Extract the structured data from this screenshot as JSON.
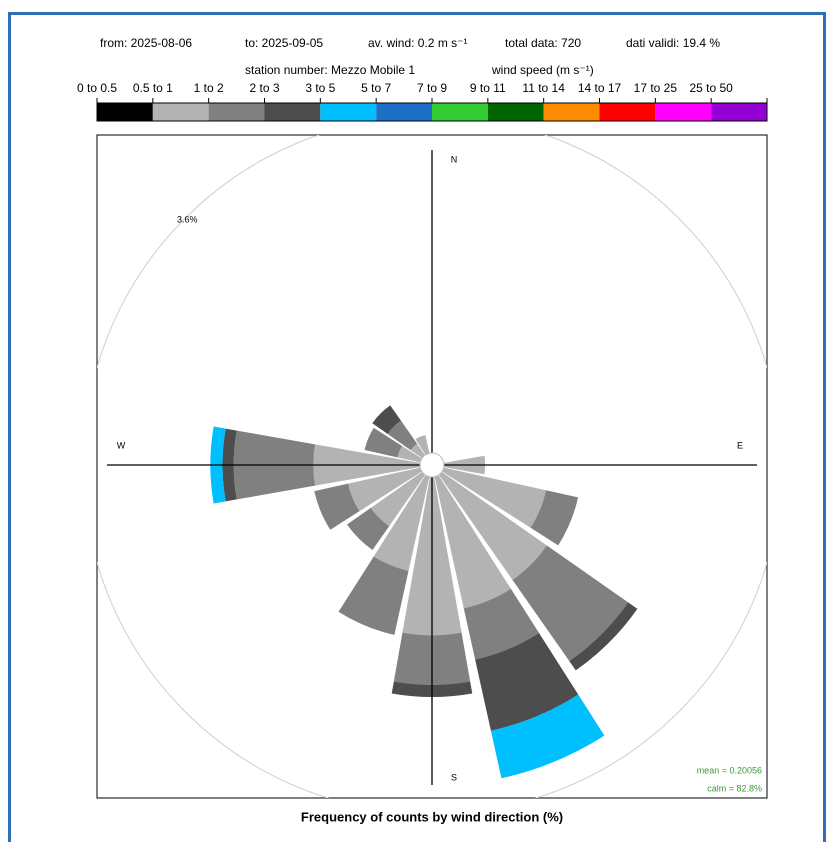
{
  "chart_data": {
    "type": "windrose",
    "header": [
      "from: 2025-08-06",
      "to: 2025-09-05",
      "av. wind:  0.2 m s⁻¹",
      "total data: 720",
      "dati validi: 19.4 %"
    ],
    "station": "station number:  Mezzo Mobile 1",
    "legend_title": "wind speed (m s⁻¹)",
    "footer": "Frequency of counts by wind direction (%)",
    "compass": [
      "N",
      "E",
      "S",
      "W"
    ],
    "annotations": [
      "mean = 0.20056",
      "calm = 82.8%"
    ],
    "directions": [
      0,
      22.5,
      45,
      67.5,
      90,
      112.5,
      135,
      157.5,
      180,
      202.5,
      225,
      247.5,
      270,
      292.5,
      315,
      337.5
    ],
    "rlim": [
      0,
      3.6
    ],
    "rticks": [
      {
        "value": 3.6,
        "label": "3.6%"
      }
    ],
    "series": [
      {
        "name": "0 to 0.5",
        "color": "#000000",
        "values": [
          0,
          0,
          0,
          0,
          0,
          0,
          0,
          0,
          0,
          0,
          0,
          0,
          0,
          0,
          0,
          0
        ]
      },
      {
        "name": "0.5 to 1",
        "color": "#b3b3b3",
        "values": [
          0,
          0,
          0,
          0,
          0.44,
          1.12,
          1.37,
          1.44,
          1.69,
          1.03,
          0.67,
          0.79,
          1.14,
          0.25,
          0.15,
          0.2
        ]
      },
      {
        "name": "1 to 2",
        "color": "#808080",
        "values": [
          0,
          0,
          0,
          0,
          0,
          0.35,
          1.06,
          0.56,
          0.53,
          0.7,
          0.31,
          0.37,
          0.85,
          0.36,
          0.3,
          0
        ]
      },
      {
        "name": "2 to 3",
        "color": "#4d4d4d",
        "values": [
          0,
          0,
          0,
          0,
          0,
          0,
          0.12,
          0.78,
          0.13,
          0,
          0,
          0,
          0.12,
          0,
          0.2,
          0
        ]
      },
      {
        "name": "3 to 5",
        "color": "#00bfff",
        "values": [
          0,
          0,
          0,
          0,
          0,
          0,
          0,
          0.52,
          0,
          0,
          0,
          0,
          0.13,
          0,
          0,
          0
        ]
      },
      {
        "name": "5 to 7",
        "color": "#1e6fc8",
        "values": [
          0,
          0,
          0,
          0,
          0,
          0,
          0,
          0,
          0,
          0,
          0,
          0,
          0,
          0,
          0,
          0
        ]
      },
      {
        "name": "7 to 9",
        "color": "#32cd32",
        "values": [
          0,
          0,
          0,
          0,
          0,
          0,
          0,
          0,
          0,
          0,
          0,
          0,
          0,
          0,
          0,
          0
        ]
      },
      {
        "name": "9 to 11",
        "color": "#006400",
        "values": [
          0,
          0,
          0,
          0,
          0,
          0,
          0,
          0,
          0,
          0,
          0,
          0,
          0,
          0,
          0,
          0
        ]
      },
      {
        "name": "11 to 14",
        "color": "#ff8c00",
        "values": [
          0,
          0,
          0,
          0,
          0,
          0,
          0,
          0,
          0,
          0,
          0,
          0,
          0,
          0,
          0,
          0
        ]
      },
      {
        "name": "14 to 17",
        "color": "#ff0000",
        "values": [
          0,
          0,
          0,
          0,
          0,
          0,
          0,
          0,
          0,
          0,
          0,
          0,
          0,
          0,
          0,
          0
        ]
      },
      {
        "name": "17 to 25",
        "color": "#ff00ff",
        "values": [
          0,
          0,
          0,
          0,
          0,
          0,
          0,
          0,
          0,
          0,
          0,
          0,
          0,
          0,
          0,
          0
        ]
      },
      {
        "name": "25 to 50",
        "color": "#9400d3",
        "values": [
          0,
          0,
          0,
          0,
          0,
          0,
          0,
          0,
          0,
          0,
          0,
          0,
          0,
          0,
          0,
          0
        ]
      }
    ]
  }
}
